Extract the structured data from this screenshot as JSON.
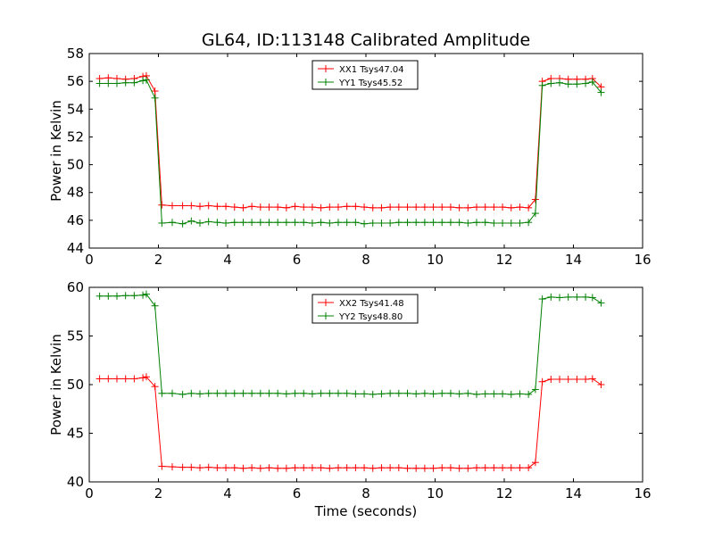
{
  "figure": {
    "title": "GL64, ID:113148 Calibrated Amplitude"
  },
  "chart_data": [
    {
      "type": "line",
      "ylabel": "Power in Kelvin",
      "xlabel": "",
      "xlim": [
        0,
        16
      ],
      "ylim": [
        44,
        58
      ],
      "xticks": [
        0,
        2,
        4,
        6,
        8,
        10,
        12,
        14,
        16
      ],
      "yticks": [
        44,
        46,
        48,
        50,
        52,
        54,
        56,
        58
      ],
      "grid": false,
      "legend_position": "top-center",
      "x": [
        0.3,
        0.55,
        0.8,
        1.05,
        1.3,
        1.55,
        1.65,
        1.9,
        2.1,
        2.4,
        2.7,
        2.95,
        3.2,
        3.45,
        3.7,
        3.95,
        4.2,
        4.45,
        4.7,
        4.95,
        5.2,
        5.45,
        5.7,
        5.95,
        6.2,
        6.45,
        6.7,
        6.95,
        7.2,
        7.45,
        7.7,
        7.95,
        8.2,
        8.45,
        8.7,
        8.95,
        9.2,
        9.45,
        9.7,
        9.95,
        10.2,
        10.45,
        10.7,
        10.95,
        11.2,
        11.45,
        11.7,
        11.95,
        12.2,
        12.45,
        12.7,
        12.9,
        13.1,
        13.35,
        13.6,
        13.85,
        14.1,
        14.35,
        14.55,
        14.8
      ],
      "series": [
        {
          "name": "XX1 Tsys47.04",
          "color": "#ff0000",
          "values": [
            56.2,
            56.25,
            56.2,
            56.15,
            56.2,
            56.35,
            56.4,
            55.3,
            47.1,
            47.05,
            47.05,
            47.05,
            47.0,
            47.05,
            47.0,
            47.0,
            46.95,
            46.9,
            47.0,
            46.95,
            46.95,
            46.95,
            46.9,
            47.0,
            46.95,
            46.95,
            46.9,
            46.95,
            46.95,
            47.0,
            47.0,
            46.95,
            46.9,
            46.9,
            46.95,
            46.95,
            46.95,
            46.95,
            46.95,
            46.95,
            46.95,
            46.95,
            46.9,
            46.9,
            46.95,
            46.95,
            46.95,
            46.95,
            46.9,
            46.95,
            46.9,
            47.5,
            56.0,
            56.2,
            56.2,
            56.15,
            56.15,
            56.15,
            56.2,
            55.6
          ]
        },
        {
          "name": "YY1 Tsys45.52",
          "color": "#008000",
          "values": [
            55.85,
            55.85,
            55.85,
            55.9,
            55.9,
            56.05,
            56.1,
            54.8,
            45.8,
            45.85,
            45.75,
            45.95,
            45.8,
            45.9,
            45.85,
            45.8,
            45.85,
            45.85,
            45.85,
            45.85,
            45.85,
            45.85,
            45.85,
            45.85,
            45.85,
            45.8,
            45.85,
            45.8,
            45.85,
            45.85,
            45.85,
            45.75,
            45.8,
            45.8,
            45.8,
            45.85,
            45.85,
            45.85,
            45.85,
            45.85,
            45.85,
            45.85,
            45.85,
            45.8,
            45.85,
            45.85,
            45.8,
            45.8,
            45.8,
            45.8,
            45.85,
            46.5,
            55.7,
            55.85,
            55.9,
            55.8,
            55.8,
            55.85,
            55.95,
            55.2
          ]
        }
      ]
    },
    {
      "type": "line",
      "ylabel": "Power in Kelvin",
      "xlabel": "Time (seconds)",
      "xlim": [
        0,
        16
      ],
      "ylim": [
        40,
        60
      ],
      "xticks": [
        0,
        2,
        4,
        6,
        8,
        10,
        12,
        14,
        16
      ],
      "yticks": [
        40,
        45,
        50,
        55,
        60
      ],
      "grid": false,
      "legend_position": "top-center",
      "x": [
        0.3,
        0.55,
        0.8,
        1.05,
        1.3,
        1.55,
        1.65,
        1.9,
        2.1,
        2.4,
        2.7,
        2.95,
        3.2,
        3.45,
        3.7,
        3.95,
        4.2,
        4.45,
        4.7,
        4.95,
        5.2,
        5.45,
        5.7,
        5.95,
        6.2,
        6.45,
        6.7,
        6.95,
        7.2,
        7.45,
        7.7,
        7.95,
        8.2,
        8.45,
        8.7,
        8.95,
        9.2,
        9.45,
        9.7,
        9.95,
        10.2,
        10.45,
        10.7,
        10.95,
        11.2,
        11.45,
        11.7,
        11.95,
        12.2,
        12.45,
        12.7,
        12.9,
        13.1,
        13.35,
        13.6,
        13.85,
        14.1,
        14.35,
        14.55,
        14.8
      ],
      "series": [
        {
          "name": "XX2 Tsys41.48",
          "color": "#ff0000",
          "values": [
            50.6,
            50.6,
            50.6,
            50.6,
            50.6,
            50.7,
            50.8,
            49.8,
            41.6,
            41.55,
            41.5,
            41.5,
            41.45,
            41.5,
            41.45,
            41.45,
            41.45,
            41.4,
            41.45,
            41.4,
            41.45,
            41.4,
            41.4,
            41.45,
            41.45,
            41.45,
            41.45,
            41.4,
            41.45,
            41.45,
            41.45,
            41.45,
            41.4,
            41.45,
            41.45,
            41.45,
            41.4,
            41.4,
            41.4,
            41.4,
            41.45,
            41.45,
            41.4,
            41.4,
            41.45,
            41.45,
            41.45,
            41.45,
            41.45,
            41.45,
            41.45,
            42.0,
            50.3,
            50.55,
            50.55,
            50.55,
            50.55,
            50.55,
            50.6,
            50.0
          ]
        },
        {
          "name": "YY2 Tsys48.80",
          "color": "#008000",
          "values": [
            59.1,
            59.1,
            59.1,
            59.15,
            59.15,
            59.2,
            59.3,
            58.1,
            49.1,
            49.1,
            49.0,
            49.1,
            49.05,
            49.1,
            49.1,
            49.1,
            49.1,
            49.1,
            49.1,
            49.1,
            49.1,
            49.1,
            49.05,
            49.1,
            49.1,
            49.05,
            49.1,
            49.1,
            49.1,
            49.1,
            49.05,
            49.05,
            49.0,
            49.05,
            49.1,
            49.1,
            49.1,
            49.05,
            49.1,
            49.05,
            49.1,
            49.1,
            49.05,
            49.1,
            49.0,
            49.05,
            49.05,
            49.05,
            49.0,
            49.05,
            49.0,
            49.5,
            58.8,
            59.0,
            58.95,
            59.0,
            59.0,
            59.0,
            58.95,
            58.4
          ]
        }
      ]
    }
  ]
}
